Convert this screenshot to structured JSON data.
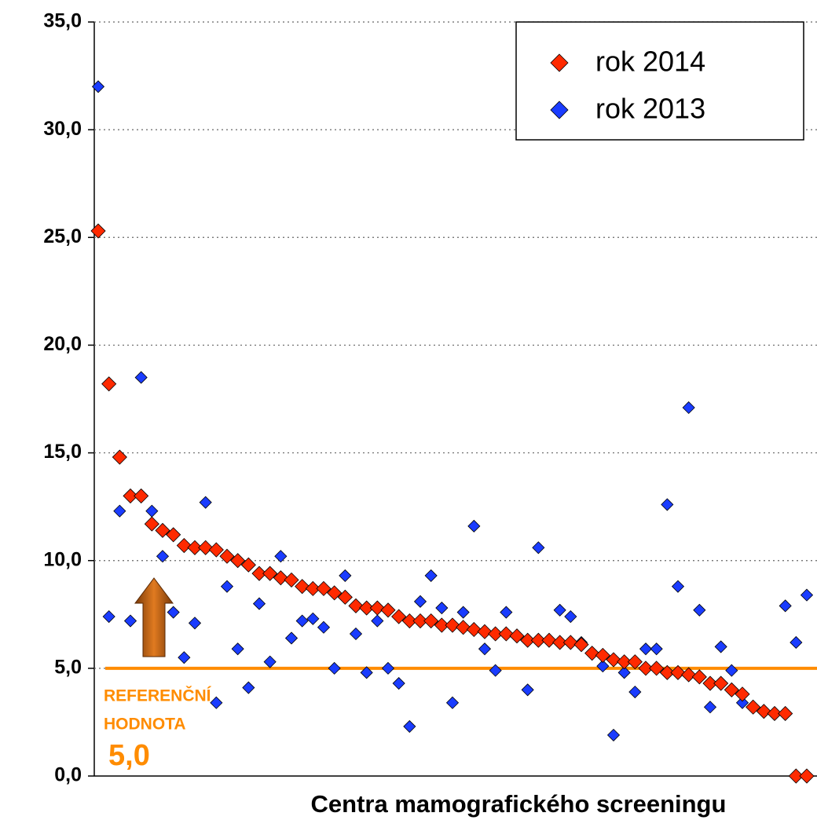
{
  "chart_data": {
    "type": "scatter",
    "x_label": "Centra mamografického screeningu",
    "categories": [
      null,
      null,
      null,
      null,
      null,
      null,
      null,
      null,
      null,
      null,
      null,
      null,
      null,
      null,
      null,
      null,
      null,
      null,
      null,
      null,
      null,
      null,
      null,
      null,
      null,
      null,
      null,
      null,
      null,
      null,
      null,
      null,
      null,
      null,
      null,
      null,
      null,
      null,
      null,
      null,
      null,
      null,
      null,
      null,
      null,
      null,
      null,
      null,
      null,
      null,
      null,
      null,
      null,
      null,
      null,
      null,
      null,
      null,
      null,
      null,
      null,
      null,
      null,
      null,
      null,
      null,
      null
    ],
    "ylim": [
      0,
      35
    ],
    "yticks": [
      {
        "value": 0,
        "label": "0,0"
      },
      {
        "value": 5,
        "label": "5,0"
      },
      {
        "value": 10,
        "label": "10,0"
      },
      {
        "value": 15,
        "label": "15,0"
      },
      {
        "value": 20,
        "label": "20,0"
      },
      {
        "value": 25,
        "label": "25,0"
      },
      {
        "value": 30,
        "label": "30,0"
      },
      {
        "value": 35,
        "label": "35,0"
      }
    ],
    "grid": true,
    "legend": "upper right",
    "series": [
      {
        "name": "rok 2014",
        "color": "#ff2a00",
        "values": [
          25.3,
          18.2,
          14.8,
          13.0,
          13.0,
          11.7,
          11.4,
          11.2,
          10.7,
          10.6,
          10.6,
          10.5,
          10.2,
          10.0,
          9.8,
          9.4,
          9.4,
          9.2,
          9.1,
          8.8,
          8.7,
          8.7,
          8.5,
          8.3,
          7.9,
          7.8,
          7.8,
          7.7,
          7.4,
          7.2,
          7.2,
          7.2,
          7.0,
          7.0,
          6.9,
          6.8,
          6.7,
          6.6,
          6.6,
          6.5,
          6.3,
          6.3,
          6.3,
          6.2,
          6.2,
          6.1,
          5.7,
          5.6,
          5.4,
          5.3,
          5.3,
          5.0,
          5.0,
          4.8,
          4.8,
          4.7,
          4.6,
          4.3,
          4.3,
          4.0,
          3.8,
          3.2,
          3.0,
          2.9,
          2.9,
          0,
          0
        ]
      },
      {
        "name": "rok 2013",
        "color": "#1a3cff",
        "values": [
          32.0,
          7.4,
          12.3,
          7.2,
          18.5,
          12.3,
          10.2,
          7.6,
          5.5,
          7.1,
          12.7,
          3.4,
          8.8,
          5.9,
          4.1,
          8.0,
          5.3,
          10.2,
          6.4,
          7.2,
          7.3,
          6.9,
          5.0,
          9.3,
          6.6,
          4.8,
          7.2,
          5.0,
          4.3,
          2.3,
          8.1,
          9.3,
          7.8,
          3.4,
          7.6,
          11.6,
          5.9,
          4.9,
          7.6,
          null,
          4.0,
          10.6,
          null,
          7.7,
          7.4,
          6.2,
          null,
          5.1,
          1.9,
          4.8,
          3.9,
          5.9,
          5.9,
          12.6,
          8.8,
          17.1,
          7.7,
          3.2,
          6.0,
          4.9,
          3.4,
          null,
          null,
          null,
          7.9,
          6.2,
          8.4
        ]
      }
    ],
    "reference": {
      "value": 5.0,
      "color": "#ff8c00",
      "label_lines": [
        "REFERENČNÍ",
        "HODNOTA"
      ],
      "value_label": "5,0"
    }
  }
}
